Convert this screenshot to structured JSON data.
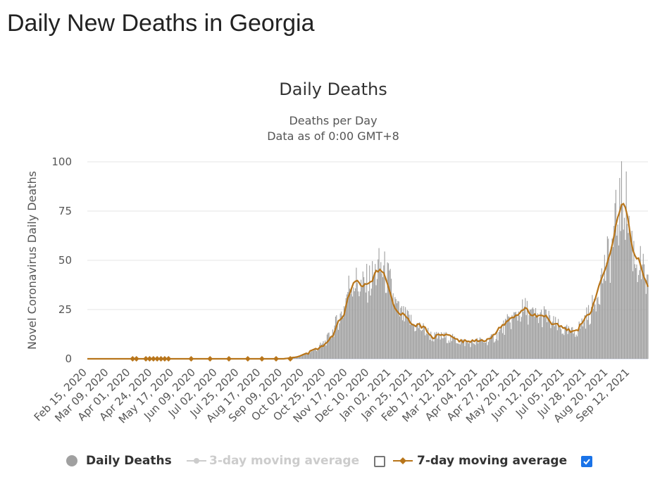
{
  "page": {
    "title": "Daily New Deaths in Georgia"
  },
  "legend": {
    "daily_label": "Daily Deaths",
    "ma3_label": "3-day moving average",
    "ma7_label": "7-day moving average",
    "ma3_checked": false,
    "ma7_checked": true
  },
  "colors": {
    "bars": "#a0a0a0",
    "ma7": "#b8751a",
    "ma3_hidden": "#cccccc",
    "grid": "#e6e6e6",
    "checkbox": "#1a73e8"
  },
  "chart_data": {
    "type": "bar",
    "title": "Daily Deaths",
    "subtitle_lines": [
      "Deaths per Day",
      "Data as of 0:00 GMT+8"
    ],
    "xlabel": "",
    "ylabel": "Novel Coronavirus Daily Deaths",
    "ylim": [
      0,
      100
    ],
    "yticks": [
      0,
      25,
      50,
      75,
      100
    ],
    "grid": true,
    "legend_position": "bottom",
    "x_range": [
      "2020-02-15",
      "2021-10-01"
    ],
    "x_tick_labels": [
      "Feb 15, 2020",
      "Mar 09, 2020",
      "Apr 01, 2020",
      "Apr 24, 2020",
      "May 17, 2020",
      "Jun 09, 2020",
      "Jul 02, 2020",
      "Jul 25, 2020",
      "Aug 17, 2020",
      "Sep 09, 2020",
      "Oct 02, 2020",
      "Oct 25, 2020",
      "Nov 17, 2020",
      "Dec 10, 2020",
      "Jan 02, 2021",
      "Jan 25, 2021",
      "Feb 17, 2021",
      "Mar 12, 2021",
      "Apr 04, 2021",
      "Apr 27, 2021",
      "May 20, 2021",
      "Jun 12, 2021",
      "Jul 05, 2021",
      "Jul 28, 2021",
      "Aug 20, 2021",
      "Sep 12, 2021"
    ],
    "series": [
      {
        "name": "Daily Deaths",
        "type": "bar",
        "points": [
          [
            "2020-02-15",
            0
          ],
          [
            "2020-03-20",
            0
          ],
          [
            "2020-04-10",
            0
          ],
          [
            "2020-06-01",
            0
          ],
          [
            "2020-08-01",
            0
          ],
          [
            "2020-09-10",
            0
          ],
          [
            "2020-09-25",
            1
          ],
          [
            "2020-10-05",
            3
          ],
          [
            "2020-10-15",
            5
          ],
          [
            "2020-10-25",
            9
          ],
          [
            "2020-11-01",
            14
          ],
          [
            "2020-11-07",
            20
          ],
          [
            "2020-11-12",
            24
          ],
          [
            "2020-11-17",
            35
          ],
          [
            "2020-11-22",
            40
          ],
          [
            "2020-11-27",
            38
          ],
          [
            "2020-12-02",
            36
          ],
          [
            "2020-12-07",
            38
          ],
          [
            "2020-12-12",
            40
          ],
          [
            "2020-12-17",
            44
          ],
          [
            "2020-12-22",
            46
          ],
          [
            "2020-12-27",
            43
          ],
          [
            "2021-01-01",
            37
          ],
          [
            "2021-01-06",
            28
          ],
          [
            "2021-01-11",
            23
          ],
          [
            "2021-01-16",
            21
          ],
          [
            "2021-01-21",
            20
          ],
          [
            "2021-01-26",
            17
          ],
          [
            "2021-02-01",
            16
          ],
          [
            "2021-02-08",
            14
          ],
          [
            "2021-02-15",
            11
          ],
          [
            "2021-02-22",
            11
          ],
          [
            "2021-03-01",
            11
          ],
          [
            "2021-03-08",
            10
          ],
          [
            "2021-03-15",
            9
          ],
          [
            "2021-03-22",
            8
          ],
          [
            "2021-03-29",
            8
          ],
          [
            "2021-04-05",
            9
          ],
          [
            "2021-04-12",
            9
          ],
          [
            "2021-04-19",
            10
          ],
          [
            "2021-04-26",
            13
          ],
          [
            "2021-05-03",
            17
          ],
          [
            "2021-05-10",
            20
          ],
          [
            "2021-05-17",
            23
          ],
          [
            "2021-05-24",
            25
          ],
          [
            "2021-05-31",
            22
          ],
          [
            "2021-06-07",
            21
          ],
          [
            "2021-06-14",
            22
          ],
          [
            "2021-06-21",
            18
          ],
          [
            "2021-06-28",
            16
          ],
          [
            "2021-07-05",
            14
          ],
          [
            "2021-07-12",
            13
          ],
          [
            "2021-07-19",
            15
          ],
          [
            "2021-07-26",
            20
          ],
          [
            "2021-08-02",
            24
          ],
          [
            "2021-08-09",
            35
          ],
          [
            "2021-08-16",
            45
          ],
          [
            "2021-08-23",
            54
          ],
          [
            "2021-08-28",
            68
          ],
          [
            "2021-09-02",
            78
          ],
          [
            "2021-09-06",
            82
          ],
          [
            "2021-09-10",
            72
          ],
          [
            "2021-09-14",
            58
          ],
          [
            "2021-09-18",
            50
          ],
          [
            "2021-09-22",
            48
          ],
          [
            "2021-09-26",
            42
          ],
          [
            "2021-10-01",
            36
          ]
        ]
      },
      {
        "name": "7-day moving average",
        "type": "line",
        "points": [
          [
            "2020-02-15",
            0
          ],
          [
            "2020-03-10",
            0
          ],
          [
            "2020-03-20",
            0
          ],
          [
            "2020-04-10",
            0
          ],
          [
            "2020-06-01",
            0
          ],
          [
            "2020-08-01",
            0
          ],
          [
            "2020-09-10",
            0
          ],
          [
            "2020-09-25",
            1
          ],
          [
            "2020-10-05",
            3
          ],
          [
            "2020-10-15",
            5
          ],
          [
            "2020-10-25",
            8
          ],
          [
            "2020-11-01",
            12
          ],
          [
            "2020-11-07",
            19
          ],
          [
            "2020-11-12",
            21
          ],
          [
            "2020-11-17",
            31
          ],
          [
            "2020-11-22",
            38
          ],
          [
            "2020-11-27",
            40
          ],
          [
            "2020-12-02",
            37
          ],
          [
            "2020-12-07",
            38
          ],
          [
            "2020-12-12",
            39
          ],
          [
            "2020-12-17",
            44
          ],
          [
            "2020-12-22",
            46
          ],
          [
            "2020-12-27",
            41
          ],
          [
            "2021-01-01",
            34
          ],
          [
            "2021-01-06",
            25
          ],
          [
            "2021-01-11",
            23
          ],
          [
            "2021-01-16",
            22
          ],
          [
            "2021-01-21",
            19
          ],
          [
            "2021-01-26",
            17
          ],
          [
            "2021-02-01",
            17
          ],
          [
            "2021-02-08",
            15
          ],
          [
            "2021-02-15",
            11
          ],
          [
            "2021-02-22",
            12
          ],
          [
            "2021-03-01",
            12
          ],
          [
            "2021-03-08",
            11
          ],
          [
            "2021-03-15",
            9
          ],
          [
            "2021-03-22",
            9
          ],
          [
            "2021-03-29",
            9
          ],
          [
            "2021-04-05",
            9
          ],
          [
            "2021-04-12",
            9
          ],
          [
            "2021-04-19",
            11
          ],
          [
            "2021-04-26",
            16
          ],
          [
            "2021-05-03",
            18
          ],
          [
            "2021-05-10",
            21
          ],
          [
            "2021-05-17",
            23
          ],
          [
            "2021-05-24",
            26
          ],
          [
            "2021-05-31",
            22
          ],
          [
            "2021-06-07",
            22
          ],
          [
            "2021-06-14",
            22
          ],
          [
            "2021-06-21",
            18
          ],
          [
            "2021-06-28",
            17
          ],
          [
            "2021-07-05",
            15
          ],
          [
            "2021-07-12",
            14
          ],
          [
            "2021-07-19",
            15
          ],
          [
            "2021-07-26",
            21
          ],
          [
            "2021-08-02",
            24
          ],
          [
            "2021-08-09",
            36
          ],
          [
            "2021-08-16",
            44
          ],
          [
            "2021-08-23",
            55
          ],
          [
            "2021-08-28",
            68
          ],
          [
            "2021-09-02",
            77
          ],
          [
            "2021-09-06",
            80
          ],
          [
            "2021-09-10",
            70
          ],
          [
            "2021-09-14",
            57
          ],
          [
            "2021-09-18",
            52
          ],
          [
            "2021-09-22",
            50
          ],
          [
            "2021-09-26",
            43
          ],
          [
            "2021-10-01",
            37
          ]
        ]
      }
    ]
  }
}
